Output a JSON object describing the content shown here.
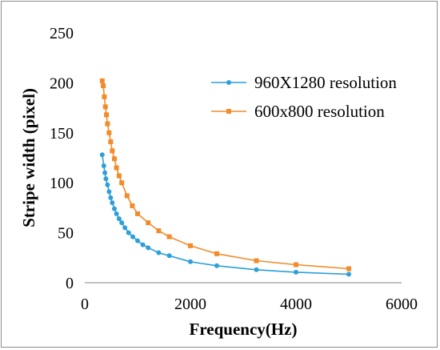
{
  "chart_data": {
    "type": "line",
    "title": "",
    "xlabel": "Frequency(Hz)",
    "ylabel": "Stripe width (pixel)",
    "xlim": [
      0,
      6000
    ],
    "ylim": [
      0,
      250
    ],
    "x_ticks": [
      0,
      2000,
      4000,
      6000
    ],
    "y_ticks": [
      0,
      50,
      100,
      150,
      200,
      250
    ],
    "grid": false,
    "legend_position": "top-right",
    "series": [
      {
        "name": "960X1280 resolution",
        "color": "#2e9fd8",
        "marker": "circle",
        "x": [
          330,
          360,
          380,
          400,
          430,
          460,
          490,
          520,
          560,
          600,
          650,
          700,
          760,
          830,
          910,
          1000,
          1100,
          1200,
          1400,
          1600,
          2000,
          2500,
          3250,
          4000,
          5000
        ],
        "y": [
          128,
          117,
          110,
          104,
          98,
          91,
          85,
          80,
          74,
          69,
          64,
          60,
          55,
          50,
          46,
          42,
          38,
          35,
          30,
          27,
          21,
          17,
          13,
          10.5,
          8.5
        ]
      },
      {
        "name": "600x800 resolution",
        "color": "#f28b2a",
        "marker": "square",
        "x": [
          330,
          350,
          370,
          390,
          410,
          430,
          460,
          490,
          520,
          560,
          600,
          650,
          700,
          800,
          900,
          1000,
          1200,
          1400,
          1600,
          2000,
          2500,
          3250,
          4000,
          5000
        ],
        "y": [
          202,
          197,
          186,
          176,
          168,
          159,
          150,
          141,
          132,
          124,
          115,
          107,
          100,
          87,
          77,
          69,
          60,
          52,
          46,
          37,
          29,
          22,
          18,
          14
        ]
      }
    ]
  }
}
